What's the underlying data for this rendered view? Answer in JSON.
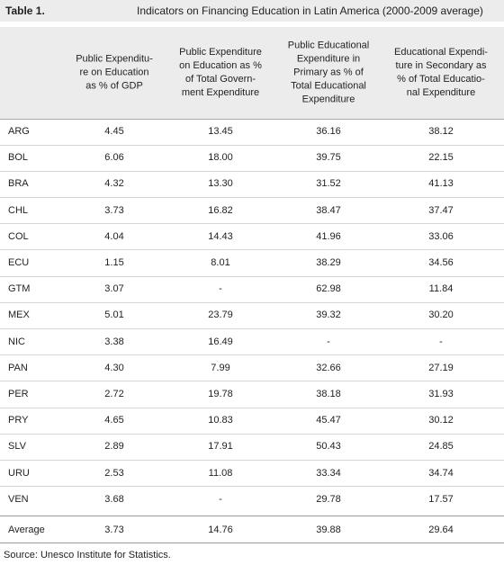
{
  "header": {
    "label": "Table 1.",
    "title": "Indicators on Financing Education in Latin America (2000-2009 average)"
  },
  "table": {
    "columns": [
      [
        "Public Expenditu-",
        "re on Education",
        "as % of GDP"
      ],
      [
        "Public Expenditure",
        "on Education as %",
        "of Total Govern-",
        "ment Expenditure"
      ],
      [
        "Public Educational",
        "Expenditure in",
        "Primary as % of",
        "Total Educational",
        "Expenditure"
      ],
      [
        "Educational Expendi-",
        "ture in Secondary as",
        "% of Total Educatio-",
        "nal Expenditure"
      ]
    ],
    "rows": [
      [
        "ARG",
        "4.45",
        "13.45",
        "36.16",
        "38.12"
      ],
      [
        "BOL",
        "6.06",
        "18.00",
        "39.75",
        "22.15"
      ],
      [
        "BRA",
        "4.32",
        "13.30",
        "31.52",
        "41.13"
      ],
      [
        "CHL",
        "3.73",
        "16.82",
        "38.47",
        "37.47"
      ],
      [
        "COL",
        "4.04",
        "14.43",
        "41.96",
        "33.06"
      ],
      [
        "ECU",
        "1.15",
        "8.01",
        "38.29",
        "34.56"
      ],
      [
        "GTM",
        "3.07",
        "-",
        "62.98",
        "11.84"
      ],
      [
        "MEX",
        "5.01",
        "23.79",
        "39.32",
        "30.20"
      ],
      [
        "NIC",
        "3.38",
        "16.49",
        "-",
        "-"
      ],
      [
        "PAN",
        "4.30",
        "7.99",
        "32.66",
        "27.19"
      ],
      [
        "PER",
        "2.72",
        "19.78",
        "38.18",
        "31.93"
      ],
      [
        "PRY",
        "4.65",
        "10.83",
        "45.47",
        "30.12"
      ],
      [
        "SLV",
        "2.89",
        "17.91",
        "50.43",
        "24.85"
      ],
      [
        "URU",
        "2.53",
        "11.08",
        "33.34",
        "34.74"
      ],
      [
        "VEN",
        "3.68",
        "-",
        "29.78",
        "17.57"
      ]
    ],
    "average": [
      "Average",
      "3.73",
      "14.76",
      "39.88",
      "29.64"
    ]
  },
  "footer": {
    "source": "Source: Unesco Institute for Statistics."
  }
}
